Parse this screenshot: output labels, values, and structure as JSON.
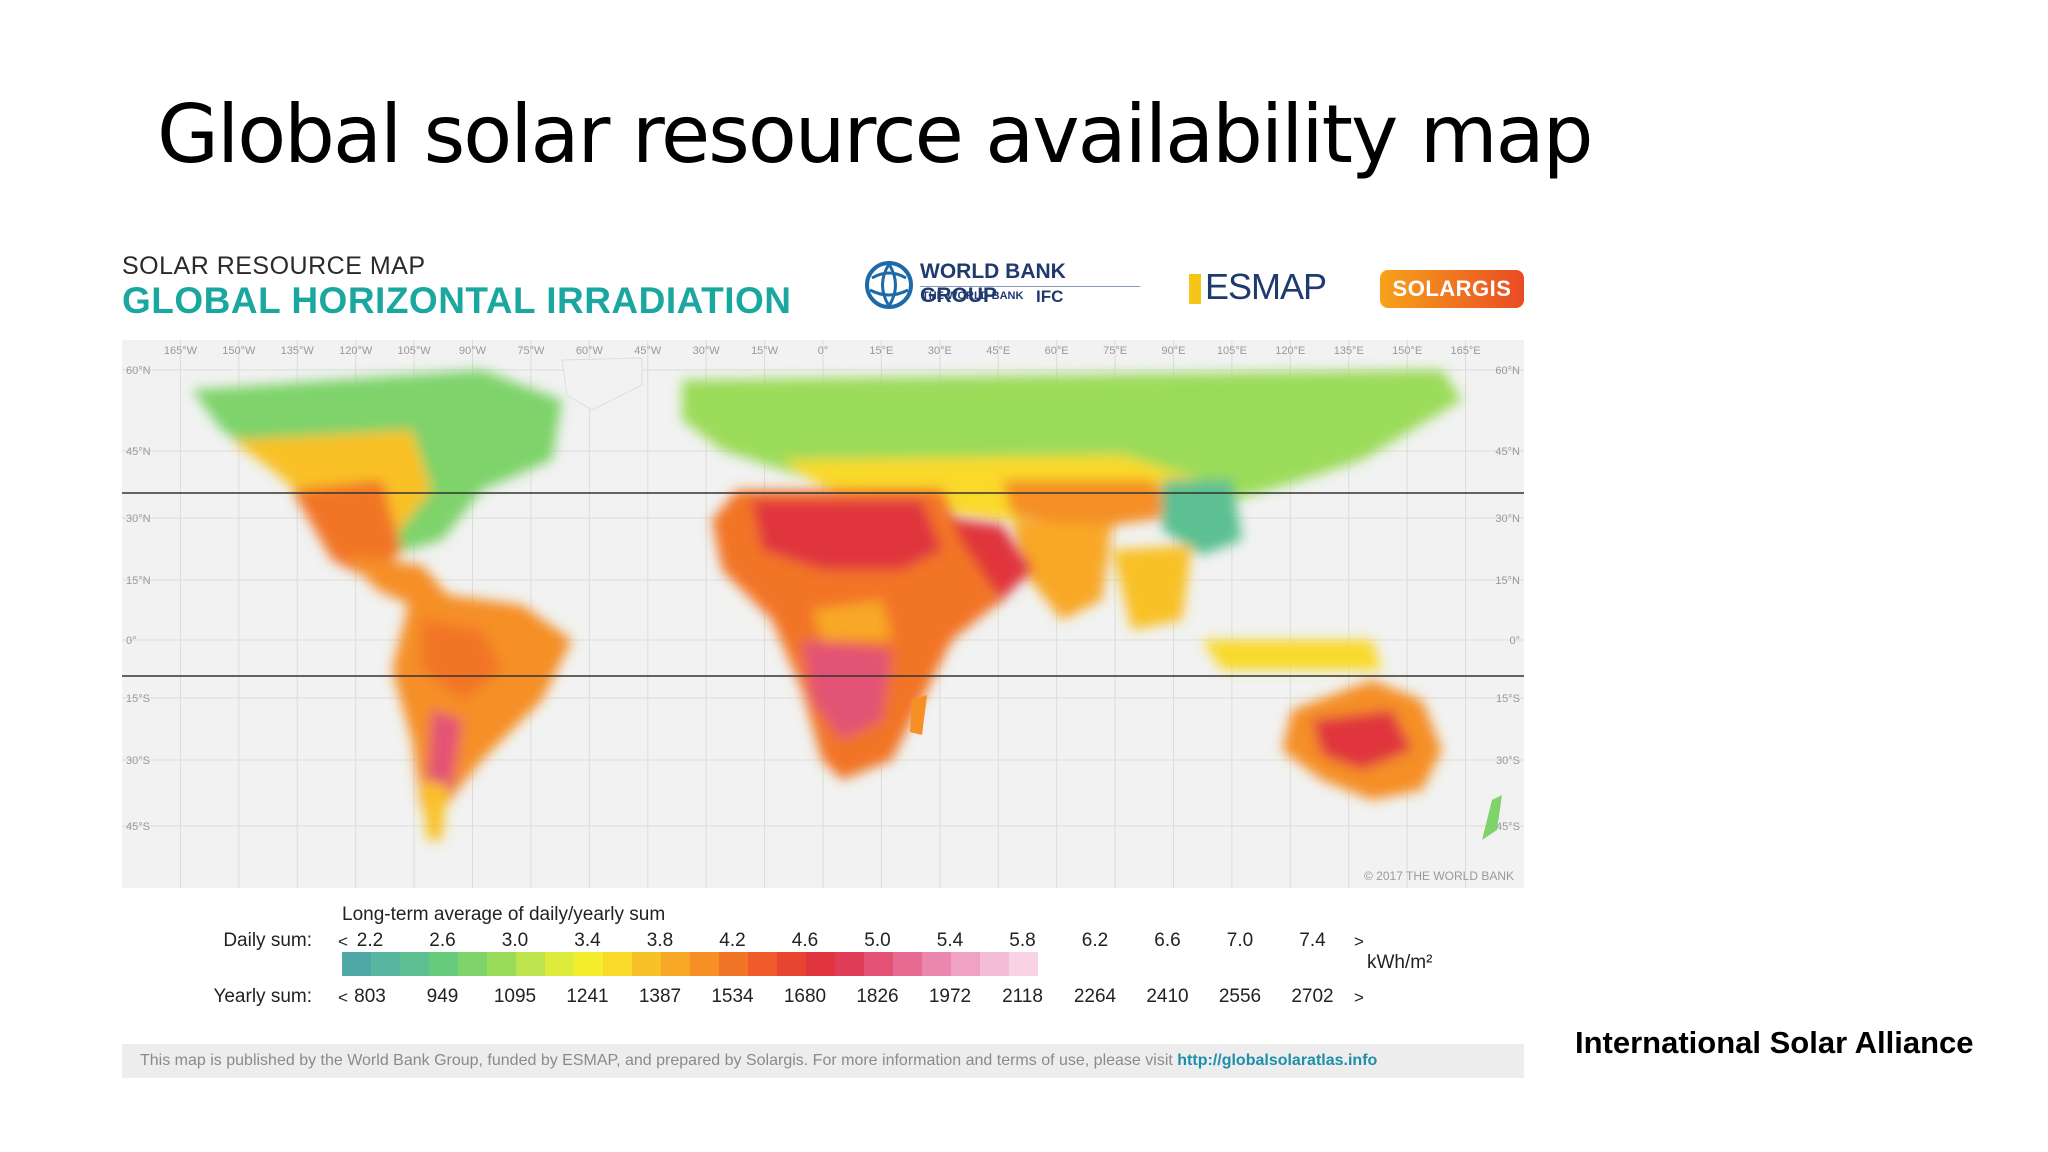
{
  "slide": {
    "title": "Global solar resource availability map",
    "attribution": "International Solar Alliance"
  },
  "map": {
    "kicker": "SOLAR RESOURCE MAP",
    "heading": "GLOBAL HORIZONTAL IRRADIATION",
    "logos": {
      "world_bank_group": "WORLD BANK GROUP",
      "world_bank": "THE WORLD BANK",
      "ifc": "IFC",
      "esmap": "ESMAP",
      "solargis": "SOLARGIS"
    },
    "longitude_labels": [
      "165°W",
      "150°W",
      "135°W",
      "120°W",
      "105°W",
      "90°W",
      "75°W",
      "60°W",
      "45°W",
      "30°W",
      "15°W",
      "0°",
      "15°E",
      "30°E",
      "45°E",
      "60°E",
      "75°E",
      "90°E",
      "105°E",
      "120°E",
      "135°E",
      "150°E",
      "165°E"
    ],
    "latitude_labels": [
      "60°N",
      "45°N",
      "30°N",
      "15°N",
      "0°",
      "15°S",
      "30°S",
      "45°S"
    ],
    "copyright": "© 2017 THE WORLD BANK",
    "legend": {
      "caption": "Long-term average of daily/yearly sum",
      "daily_label": "Daily sum:",
      "yearly_label": "Yearly sum:",
      "daily_values": [
        "2.2",
        "2.6",
        "3.0",
        "3.4",
        "3.8",
        "4.2",
        "4.6",
        "5.0",
        "5.4",
        "5.8",
        "6.2",
        "6.6",
        "7.0",
        "7.4"
      ],
      "yearly_values": [
        "803",
        "949",
        "1095",
        "1241",
        "1387",
        "1534",
        "1680",
        "1826",
        "1972",
        "2118",
        "2264",
        "2410",
        "2556",
        "2702"
      ],
      "less": "<",
      "more": ">",
      "unit": "kWh/m²",
      "colors": [
        "#4fa7a6",
        "#58b5a0",
        "#5cc092",
        "#66cc7c",
        "#7ed36a",
        "#9bdb5a",
        "#bde44c",
        "#dceb3c",
        "#f3ed2e",
        "#f9d92a",
        "#f9c128",
        "#f8a827",
        "#f58f26",
        "#f27426",
        "#ee5a2a",
        "#e84432",
        "#e0353e",
        "#df3d57",
        "#e35275",
        "#e76a92",
        "#eb86ad",
        "#f0a2c3",
        "#f4bdd5",
        "#f8d3e3"
      ]
    },
    "footer_text": "This map is published by the World Bank Group, funded by ESMAP, and prepared by Solargis. For more information and terms of use, please visit",
    "footer_link": "http://globalsolaratlas.info"
  }
}
